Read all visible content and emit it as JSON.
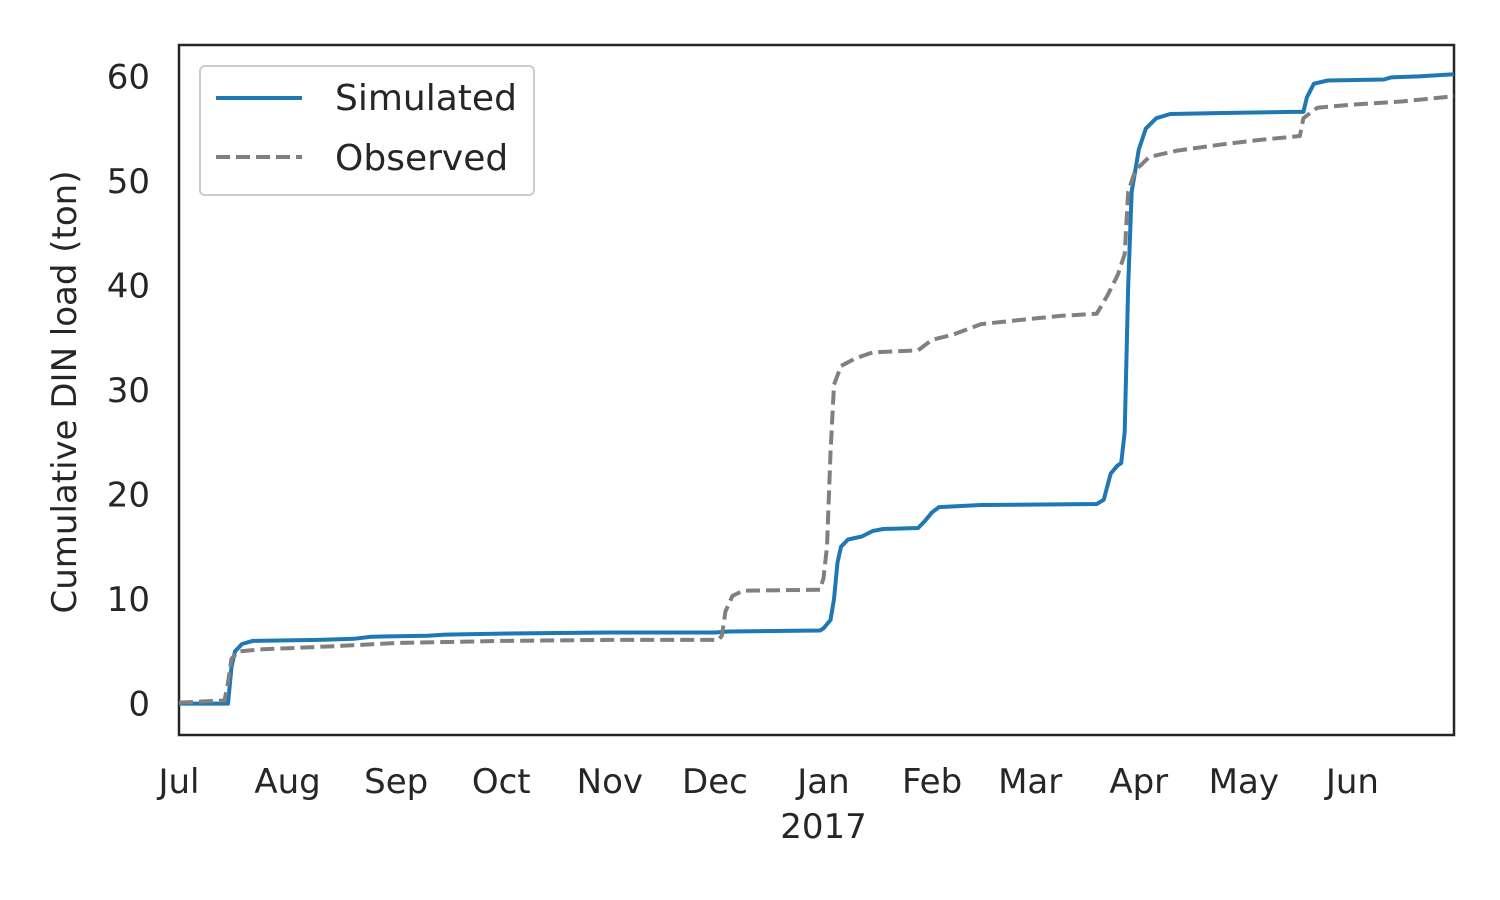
{
  "chart_data": {
    "type": "line",
    "xlabel": "",
    "ylabel": "Cumulative DIN load (ton)",
    "xlim": [
      "2016-07-01",
      "2017-06-30"
    ],
    "ylim": [
      -3,
      63
    ],
    "yticks": [
      0,
      10,
      20,
      30,
      40,
      50,
      60
    ],
    "xticks": [
      {
        "date": "2016-07-01",
        "label": "Jul"
      },
      {
        "date": "2016-08-01",
        "label": "Aug"
      },
      {
        "date": "2016-09-01",
        "label": "Sep"
      },
      {
        "date": "2016-10-01",
        "label": "Oct"
      },
      {
        "date": "2016-11-01",
        "label": "Nov"
      },
      {
        "date": "2016-12-01",
        "label": "Dec"
      },
      {
        "date": "2017-01-01",
        "label": "Jan",
        "sublabel": "2017"
      },
      {
        "date": "2017-02-01",
        "label": "Feb"
      },
      {
        "date": "2017-03-01",
        "label": "Mar"
      },
      {
        "date": "2017-04-01",
        "label": "Apr"
      },
      {
        "date": "2017-05-01",
        "label": "May"
      },
      {
        "date": "2017-06-01",
        "label": "Jun"
      }
    ],
    "grid": false,
    "legend_position": "upper left",
    "series": [
      {
        "name": "Simulated",
        "color": "#1f77b4",
        "style": "solid",
        "points": [
          [
            "2016-07-01",
            0
          ],
          [
            "2016-07-15",
            0
          ],
          [
            "2016-07-16",
            3.5
          ],
          [
            "2016-07-17",
            5.0
          ],
          [
            "2016-07-19",
            5.7
          ],
          [
            "2016-07-22",
            6.0
          ],
          [
            "2016-08-10",
            6.1
          ],
          [
            "2016-08-20",
            6.2
          ],
          [
            "2016-08-25",
            6.4
          ],
          [
            "2016-09-10",
            6.5
          ],
          [
            "2016-09-15",
            6.6
          ],
          [
            "2016-10-01",
            6.7
          ],
          [
            "2016-11-01",
            6.8
          ],
          [
            "2016-12-01",
            6.8
          ],
          [
            "2016-12-05",
            6.9
          ],
          [
            "2016-12-31",
            7.0
          ],
          [
            "2017-01-01",
            7.2
          ],
          [
            "2017-01-03",
            8.0
          ],
          [
            "2017-01-04",
            10.0
          ],
          [
            "2017-01-05",
            13.5
          ],
          [
            "2017-01-06",
            15.0
          ],
          [
            "2017-01-08",
            15.7
          ],
          [
            "2017-01-12",
            16.0
          ],
          [
            "2017-01-15",
            16.5
          ],
          [
            "2017-01-18",
            16.7
          ],
          [
            "2017-01-28",
            16.8
          ],
          [
            "2017-01-30",
            17.5
          ],
          [
            "2017-02-01",
            18.3
          ],
          [
            "2017-02-03",
            18.8
          ],
          [
            "2017-02-15",
            19.0
          ],
          [
            "2017-03-20",
            19.1
          ],
          [
            "2017-03-22",
            19.5
          ],
          [
            "2017-03-24",
            22.0
          ],
          [
            "2017-03-26",
            22.8
          ],
          [
            "2017-03-27",
            23.0
          ],
          [
            "2017-03-28",
            26.0
          ],
          [
            "2017-03-29",
            40.0
          ],
          [
            "2017-03-30",
            49.0
          ],
          [
            "2017-03-31",
            51.0
          ],
          [
            "2017-04-01",
            53.0
          ],
          [
            "2017-04-03",
            55.0
          ],
          [
            "2017-04-06",
            56.0
          ],
          [
            "2017-04-10",
            56.4
          ],
          [
            "2017-04-25",
            56.5
          ],
          [
            "2017-05-15",
            56.6
          ],
          [
            "2017-05-18",
            56.6
          ],
          [
            "2017-05-19",
            58.0
          ],
          [
            "2017-05-21",
            59.3
          ],
          [
            "2017-05-25",
            59.6
          ],
          [
            "2017-06-10",
            59.7
          ],
          [
            "2017-06-12",
            59.9
          ],
          [
            "2017-06-20",
            60.0
          ],
          [
            "2017-06-30",
            60.2
          ]
        ]
      },
      {
        "name": "Observed",
        "color": "#808080",
        "style": "dashed",
        "points": [
          [
            "2016-07-01",
            0.1
          ],
          [
            "2016-07-14",
            0.3
          ],
          [
            "2016-07-15",
            2.0
          ],
          [
            "2016-07-16",
            4.3
          ],
          [
            "2016-07-18",
            5.0
          ],
          [
            "2016-07-25",
            5.2
          ],
          [
            "2016-08-15",
            5.5
          ],
          [
            "2016-09-01",
            5.8
          ],
          [
            "2016-10-01",
            6.0
          ],
          [
            "2016-11-01",
            6.1
          ],
          [
            "2016-12-02",
            6.1
          ],
          [
            "2016-12-03",
            6.5
          ],
          [
            "2016-12-04",
            8.8
          ],
          [
            "2016-12-06",
            10.3
          ],
          [
            "2016-12-09",
            10.8
          ],
          [
            "2016-12-31",
            10.9
          ],
          [
            "2017-01-01",
            12.0
          ],
          [
            "2017-01-02",
            15.0
          ],
          [
            "2017-01-03",
            24.0
          ],
          [
            "2017-01-04",
            30.5
          ],
          [
            "2017-01-06",
            32.3
          ],
          [
            "2017-01-10",
            33.0
          ],
          [
            "2017-01-15",
            33.6
          ],
          [
            "2017-01-28",
            33.8
          ],
          [
            "2017-02-01",
            34.8
          ],
          [
            "2017-02-07",
            35.3
          ],
          [
            "2017-02-15",
            36.3
          ],
          [
            "2017-03-01",
            36.8
          ],
          [
            "2017-03-10",
            37.1
          ],
          [
            "2017-03-20",
            37.3
          ],
          [
            "2017-03-23",
            39.0
          ],
          [
            "2017-03-26",
            41.0
          ],
          [
            "2017-03-28",
            43.0
          ],
          [
            "2017-03-29",
            49.0
          ],
          [
            "2017-03-31",
            51.0
          ],
          [
            "2017-04-04",
            52.3
          ],
          [
            "2017-04-12",
            52.9
          ],
          [
            "2017-04-25",
            53.5
          ],
          [
            "2017-05-05",
            53.9
          ],
          [
            "2017-05-17",
            54.3
          ],
          [
            "2017-05-18",
            56.0
          ],
          [
            "2017-05-22",
            57.0
          ],
          [
            "2017-06-01",
            57.3
          ],
          [
            "2017-06-15",
            57.6
          ],
          [
            "2017-06-30",
            58.1
          ]
        ]
      }
    ]
  }
}
